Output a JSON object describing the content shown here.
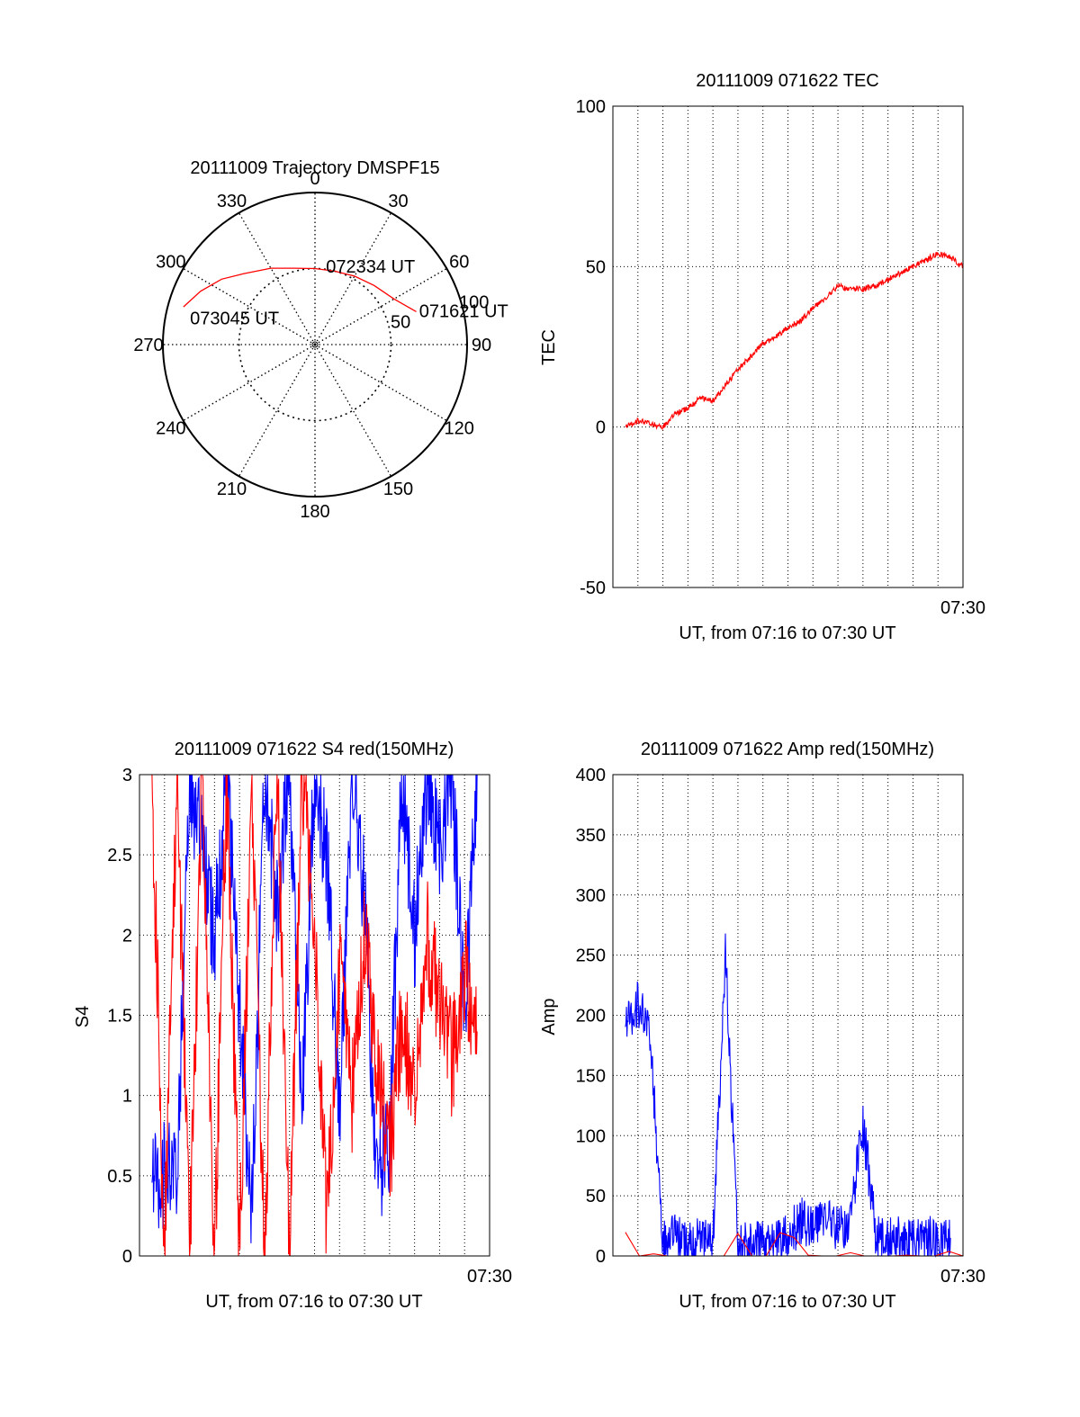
{
  "chart_data": [
    {
      "id": "polar",
      "type": "scatter",
      "title": "20111009 Trajectory DMSPF15",
      "coordinate_system": "polar (azimuth clockwise from north, radius = 90 - elevation)",
      "azimuth_labels": [
        "0",
        "30",
        "60",
        "90",
        "120",
        "150",
        "180",
        "210",
        "240",
        "270",
        "300",
        "330"
      ],
      "elevation_labels": [
        "50",
        "100"
      ],
      "grid": true,
      "series": [
        {
          "color": "#ff0000",
          "points": [
            {
              "az": 72,
              "r": 70
            },
            {
              "az": 60,
              "r": 60
            },
            {
              "az": 45,
              "r": 55
            },
            {
              "az": 30,
              "r": 52
            },
            {
              "az": 15,
              "r": 50
            },
            {
              "az": 0,
              "r": 50
            },
            {
              "az": -15,
              "r": 52
            },
            {
              "az": -30,
              "r": 58
            },
            {
              "az": -45,
              "r": 66
            },
            {
              "az": -55,
              "r": 75
            },
            {
              "az": -65,
              "r": 83
            },
            {
              "az": -74,
              "r": 90
            }
          ]
        }
      ],
      "annotations": [
        {
          "text": "071621 UT",
          "az": 72,
          "r": 72
        },
        {
          "text": "072334 UT",
          "az": 8,
          "r": 52
        },
        {
          "text": "073045 UT",
          "az": -78,
          "r": 84
        }
      ]
    },
    {
      "id": "tec",
      "type": "line",
      "title": "20111009 071622 TEC",
      "xlabel": "UT, from 07:16 to 07:30 UT",
      "ylabel": "TEC",
      "xlim": [
        "07:16",
        "07:30"
      ],
      "x_tick_labels": [
        "07:30"
      ],
      "ylim": [
        -50,
        100
      ],
      "y_ticks": [
        -50,
        0,
        50,
        100
      ],
      "grid": true,
      "series": [
        {
          "color": "#ff0000",
          "x": [
            "07:16:30",
            "07:17:00",
            "07:17:30",
            "07:18:00",
            "07:18:30",
            "07:19:00",
            "07:19:30",
            "07:20:00",
            "07:20:30",
            "07:21:00",
            "07:21:30",
            "07:22:00",
            "07:22:30",
            "07:23:00",
            "07:23:30",
            "07:24:00",
            "07:24:30",
            "07:25:00",
            "07:25:30",
            "07:26:00",
            "07:26:30",
            "07:27:00",
            "07:27:30",
            "07:28:00",
            "07:28:30",
            "07:29:00",
            "07:29:30",
            "07:30:00"
          ],
          "values": [
            0,
            2,
            1,
            0,
            4,
            6,
            9,
            8,
            13,
            18,
            22,
            26,
            28,
            31,
            33,
            37,
            40,
            44,
            43,
            43,
            44,
            46,
            48,
            50,
            52,
            54,
            53,
            50
          ]
        }
      ]
    },
    {
      "id": "s4",
      "type": "line",
      "title": "20111009 071622 S4 red(150MHz)",
      "xlabel": "UT, from 07:16 to 07:30 UT",
      "ylabel": "S4",
      "xlim": [
        "07:16",
        "07:30"
      ],
      "x_tick_labels": [
        "07:30"
      ],
      "ylim": [
        0,
        3
      ],
      "y_ticks": [
        0,
        0.5,
        1,
        1.5,
        2,
        2.5,
        3
      ],
      "y_tick_labels": [
        "0",
        "0.5",
        "1",
        "1.5",
        "2",
        "2.5",
        "3"
      ],
      "grid": true,
      "series": [
        {
          "color": "#0000ff",
          "x": [
            "07:16:30",
            "07:17:00",
            "07:17:30",
            "07:18:00",
            "07:18:30",
            "07:19:00",
            "07:19:30",
            "07:20:00",
            "07:20:30",
            "07:21:00",
            "07:21:30",
            "07:22:00",
            "07:22:30",
            "07:23:00",
            "07:23:30",
            "07:24:00",
            "07:24:30",
            "07:25:00",
            "07:25:30",
            "07:26:00",
            "07:26:30",
            "07:27:00",
            "07:27:30",
            "07:28:00",
            "07:28:30",
            "07:29:00",
            "07:29:30"
          ],
          "values": [
            0.45,
            0.5,
            0.45,
            3,
            2.5,
            2.0,
            3,
            1.5,
            0.25,
            3,
            2.2,
            3,
            0.9,
            3,
            2.5,
            0.8,
            3,
            2.2,
            0.45,
            0.7,
            3,
            2.0,
            3,
            2.5,
            3,
            1.5,
            3
          ]
        },
        {
          "color": "#ff0000",
          "x": [
            "07:16:30",
            "07:17:00",
            "07:17:30",
            "07:18:00",
            "07:18:30",
            "07:19:00",
            "07:19:30",
            "07:20:00",
            "07:20:30",
            "07:21:00",
            "07:21:30",
            "07:22:00",
            "07:22:30",
            "07:23:00",
            "07:23:30",
            "07:24:00",
            "07:24:30",
            "07:25:00",
            "07:25:30",
            "07:26:00",
            "07:26:30",
            "07:27:00",
            "07:27:30",
            "07:28:00",
            "07:28:30",
            "07:29:00",
            "07:29:30"
          ],
          "values": [
            3,
            0,
            3,
            0,
            3,
            0,
            3,
            0,
            3,
            0,
            3,
            0,
            3,
            2.0,
            0.2,
            1.8,
            1.0,
            2.0,
            1.2,
            0.6,
            1.5,
            1.0,
            2.0,
            1.6,
            1.2,
            1.8,
            1.4
          ]
        }
      ]
    },
    {
      "id": "amp",
      "type": "line",
      "title": "20111009 071622 Amp red(150MHz)",
      "xlabel": "UT, from 07:16 to 07:30 UT",
      "ylabel": "Amp",
      "xlim": [
        "07:16",
        "07:30"
      ],
      "x_tick_labels": [
        "07:30"
      ],
      "ylim": [
        0,
        400
      ],
      "y_ticks": [
        0,
        50,
        100,
        150,
        200,
        250,
        300,
        350,
        400
      ],
      "grid": true,
      "series": [
        {
          "color": "#0000ff",
          "x": [
            "07:16:30",
            "07:17:00",
            "07:17:30",
            "07:18:00",
            "07:18:30",
            "07:19:00",
            "07:19:30",
            "07:20:00",
            "07:20:30",
            "07:21:00",
            "07:21:30",
            "07:22:00",
            "07:22:30",
            "07:23:00",
            "07:23:30",
            "07:24:00",
            "07:24:30",
            "07:25:00",
            "07:25:30",
            "07:26:00",
            "07:26:30",
            "07:27:00",
            "07:27:30",
            "07:28:00",
            "07:28:30",
            "07:29:00",
            "07:29:30"
          ],
          "values": [
            190,
            210,
            180,
            10,
            15,
            10,
            12,
            10,
            250,
            8,
            12,
            10,
            12,
            15,
            30,
            20,
            35,
            20,
            30,
            110,
            20,
            12,
            15,
            12,
            15,
            12,
            15
          ]
        },
        {
          "color": "#ff0000",
          "x": [
            "07:16:30",
            "07:30:00"
          ],
          "values": [
            0,
            0
          ]
        }
      ]
    }
  ]
}
